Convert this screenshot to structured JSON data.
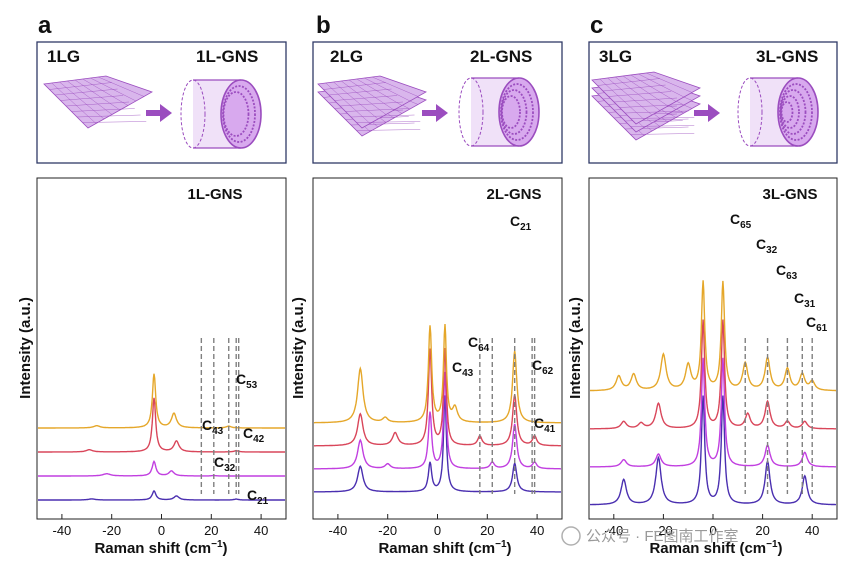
{
  "panels": [
    {
      "letter": "a",
      "left_label": "1LG",
      "right_label": "1L-GNS",
      "layers": 1,
      "chart_title": "1L-GNS"
    },
    {
      "letter": "b",
      "left_label": "2LG",
      "right_label": "2L-GNS",
      "layers": 2,
      "chart_title": "2L-GNS"
    },
    {
      "letter": "c",
      "left_label": "3LG",
      "right_label": "3L-GNS",
      "layers": 3,
      "chart_title": "3L-GNS"
    }
  ],
  "xlabel_main": "Raman shift (cm",
  "xlabel_sup": "−1",
  "xlabel_close": ")",
  "ylabel": "Intensity (a.u.)",
  "watermark": "公众号 · FE图南工作室",
  "colors": {
    "curve1": "#4a2fb0",
    "curve2": "#c13fe0",
    "curve3": "#d9465a",
    "curve4": "#e5a72a",
    "illustration": "#9b4dbf",
    "box_border": "#2f3a66",
    "dashed": "#808080"
  },
  "chart_data": [
    {
      "type": "line",
      "title": "1L-GNS",
      "xlabel": "Raman shift (cm−1)",
      "ylabel": "Intensity (a.u.)",
      "xlim": [
        -50,
        50
      ],
      "xticks": [
        -40,
        -20,
        0,
        20,
        40
      ],
      "series_offsets": [
        0,
        1,
        2,
        3
      ],
      "series": [
        {
          "name": "curve-1",
          "color": "#4a2fb0",
          "peaks": [
            [
              -28,
              0.12,
              1.6
            ],
            [
              -3,
              1.0,
              0.9
            ],
            [
              6,
              0.45,
              1.2
            ],
            [
              30,
              0.1,
              1.0
            ]
          ]
        },
        {
          "name": "curve-2",
          "color": "#c13fe0",
          "peaks": [
            [
              -22,
              0.25,
              1.8
            ],
            [
              -3,
              1.6,
              0.9
            ],
            [
              4,
              0.55,
              1.2
            ],
            [
              21,
              0.05,
              1.0
            ]
          ]
        },
        {
          "name": "curve-3",
          "color": "#d9465a",
          "peaks": [
            [
              -29,
              0.25,
              1.5
            ],
            [
              -3,
              6,
              0.8
            ],
            [
              6,
              1.2,
              1.2
            ],
            [
              30,
              0.15,
              1.0
            ]
          ]
        },
        {
          "name": "curve-4",
          "color": "#e5a72a",
          "peaks": [
            [
              -26,
              0.25,
              1.5
            ],
            [
              -3,
              6,
              0.8
            ],
            [
              5,
              1.6,
              1.2
            ],
            [
              27,
              0.2,
              1.2
            ]
          ]
        }
      ],
      "annotations": [
        {
          "main": "C",
          "sub": "53",
          "x": 27
        },
        {
          "main": "C",
          "sub": "43",
          "x": 16
        },
        {
          "main": "C",
          "sub": "42",
          "x": 31
        },
        {
          "main": "C",
          "sub": "32",
          "x": 21
        },
        {
          "main": "C",
          "sub": "21",
          "x": 30
        }
      ]
    },
    {
      "type": "line",
      "title": "2L-GNS",
      "xlabel": "Raman shift (cm−1)",
      "ylabel": "Intensity (a.u.)",
      "xlim": [
        -50,
        50
      ],
      "xticks": [
        -40,
        -20,
        0,
        20,
        40
      ],
      "series_offsets": [
        0,
        1,
        2,
        3
      ],
      "series": [
        {
          "name": "curve-1",
          "color": "#4a2fb0",
          "peaks": [
            [
              -31,
              1.6,
              1.3
            ],
            [
              -3,
              1.8,
              0.8
            ],
            [
              3,
              6,
              0.7
            ],
            [
              31,
              1.8,
              1.0
            ]
          ]
        },
        {
          "name": "curve-2",
          "color": "#c13fe0",
          "peaks": [
            [
              -31,
              1.8,
              1.3
            ],
            [
              -20,
              0.3,
              1.2
            ],
            [
              -3,
              3.5,
              0.8
            ],
            [
              3,
              6,
              0.7
            ],
            [
              22,
              0.4,
              1.0
            ],
            [
              31,
              2.8,
              1.0
            ],
            [
              39,
              0.4,
              1.0
            ]
          ]
        },
        {
          "name": "curve-3",
          "color": "#d9465a",
          "peaks": [
            [
              -31,
              2.0,
              1.3
            ],
            [
              -17,
              0.8,
              1.3
            ],
            [
              -3,
              6,
              0.8
            ],
            [
              3,
              6,
              0.7
            ],
            [
              17,
              0.6,
              1.0
            ],
            [
              31,
              3.2,
              1.0
            ],
            [
              39,
              0.6,
              1.0
            ]
          ]
        },
        {
          "name": "curve-4",
          "color": "#e5a72a",
          "peaks": [
            [
              -31,
              3.4,
              1.3
            ],
            [
              -21,
              0.3,
              1.2
            ],
            [
              -3,
              6,
              0.8
            ],
            [
              3,
              6,
              0.7
            ],
            [
              7,
              0.9,
              1.2
            ],
            [
              31,
              4.5,
              1.0
            ]
          ]
        }
      ],
      "annotations": [
        {
          "main": "C",
          "sub": "21",
          "x": 31
        },
        {
          "main": "C",
          "sub": "64",
          "x": 22
        },
        {
          "main": "C",
          "sub": "43",
          "x": 17
        },
        {
          "main": "C",
          "sub": "62",
          "x": 38
        },
        {
          "main": "C",
          "sub": "41",
          "x": 39
        }
      ]
    },
    {
      "type": "line",
      "title": "3L-GNS",
      "xlabel": "Raman shift (cm−1)",
      "ylabel": "Intensity (a.u.)",
      "xlim": [
        -50,
        50
      ],
      "xticks": [
        -40,
        -20,
        0,
        20,
        40
      ],
      "series_offsets": [
        0,
        1,
        2,
        3
      ],
      "series": [
        {
          "name": "curve-1",
          "color": "#4a2fb0",
          "peaks": [
            [
              -36,
              1.4,
              1.3
            ],
            [
              -22,
              2.6,
              1.3
            ],
            [
              -4,
              6,
              0.8
            ],
            [
              4,
              6,
              0.8
            ],
            [
              22,
              2.4,
              1.2
            ],
            [
              37,
              1.6,
              1.2
            ]
          ]
        },
        {
          "name": "curve-2",
          "color": "#c13fe0",
          "peaks": [
            [
              -36,
              0.4,
              1.3
            ],
            [
              -22,
              0.7,
              1.3
            ],
            [
              -4,
              6,
              0.8
            ],
            [
              4,
              6,
              0.8
            ],
            [
              22,
              1.2,
              1.2
            ],
            [
              37,
              0.8,
              1.2
            ]
          ]
        },
        {
          "name": "curve-3",
          "color": "#d9465a",
          "peaks": [
            [
              -36,
              0.4,
              1.3
            ],
            [
              -29,
              0.3,
              1.3
            ],
            [
              -22,
              1.4,
              1.3
            ],
            [
              -4,
              6,
              0.8
            ],
            [
              4,
              6,
              0.8
            ],
            [
              14,
              0.8,
              1.2
            ],
            [
              22,
              1.5,
              1.2
            ],
            [
              30,
              0.4,
              1.2
            ],
            [
              37,
              0.4,
              1.2
            ]
          ]
        },
        {
          "name": "curve-4",
          "color": "#e5a72a",
          "peaks": [
            [
              -38,
              0.8,
              1.3
            ],
            [
              -32,
              0.9,
              1.3
            ],
            [
              -20,
              2.0,
              1.3
            ],
            [
              -10,
              1.4,
              1.3
            ],
            [
              -4,
              6,
              0.8
            ],
            [
              4,
              6,
              0.8
            ],
            [
              13,
              1.5,
              1.2
            ],
            [
              22,
              1.8,
              1.2
            ],
            [
              30,
              1.2,
              1.2
            ],
            [
              36,
              0.9,
              1.2
            ],
            [
              40,
              0.5,
              1.2
            ]
          ]
        }
      ],
      "annotations": [
        {
          "main": "C",
          "sub": "65",
          "x": 13
        },
        {
          "main": "C",
          "sub": "32",
          "x": 22
        },
        {
          "main": "C",
          "sub": "63",
          "x": 30
        },
        {
          "main": "C",
          "sub": "31",
          "x": 36
        },
        {
          "main": "C",
          "sub": "61",
          "x": 40
        }
      ]
    }
  ]
}
